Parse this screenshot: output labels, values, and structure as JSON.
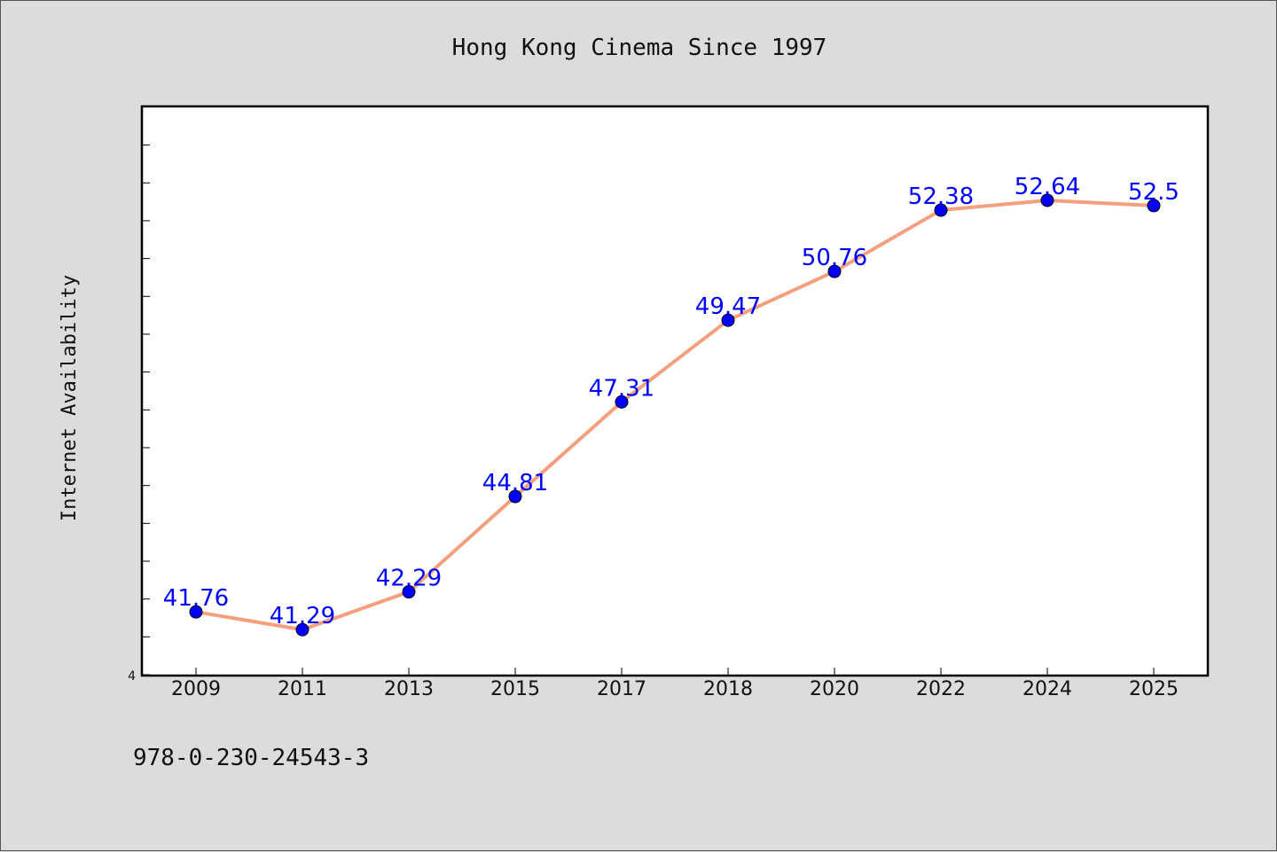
{
  "chart_data": {
    "type": "line",
    "title": "Hong Kong Cinema Since 1997",
    "xlabel": "",
    "ylabel": "Internet Availability",
    "categories": [
      "2009",
      "2011",
      "2013",
      "2015",
      "2017",
      "2018",
      "2020",
      "2022",
      "2024",
      "2025"
    ],
    "series": [
      {
        "values": [
          41.76,
          41.29,
          42.29,
          44.81,
          47.31,
          49.47,
          50.76,
          52.38,
          52.64,
          52.5
        ]
      }
    ],
    "data_labels": [
      "41.76",
      "41.29",
      "42.29",
      "44.81",
      "47.31",
      "49.47",
      "50.76",
      "52.38",
      "52.64",
      "52.5"
    ],
    "y_tick_label": "4",
    "ylim": [
      40.1,
      55.1
    ],
    "grid": false,
    "legend": "none",
    "colors": {
      "line": "#f4a07e",
      "marker": "#0000ff",
      "label": "#0000ff",
      "background": "#dcdcdc",
      "plot_background": "#ffffff"
    }
  },
  "footer": {
    "isbn": "978-0-230-24543-3"
  }
}
